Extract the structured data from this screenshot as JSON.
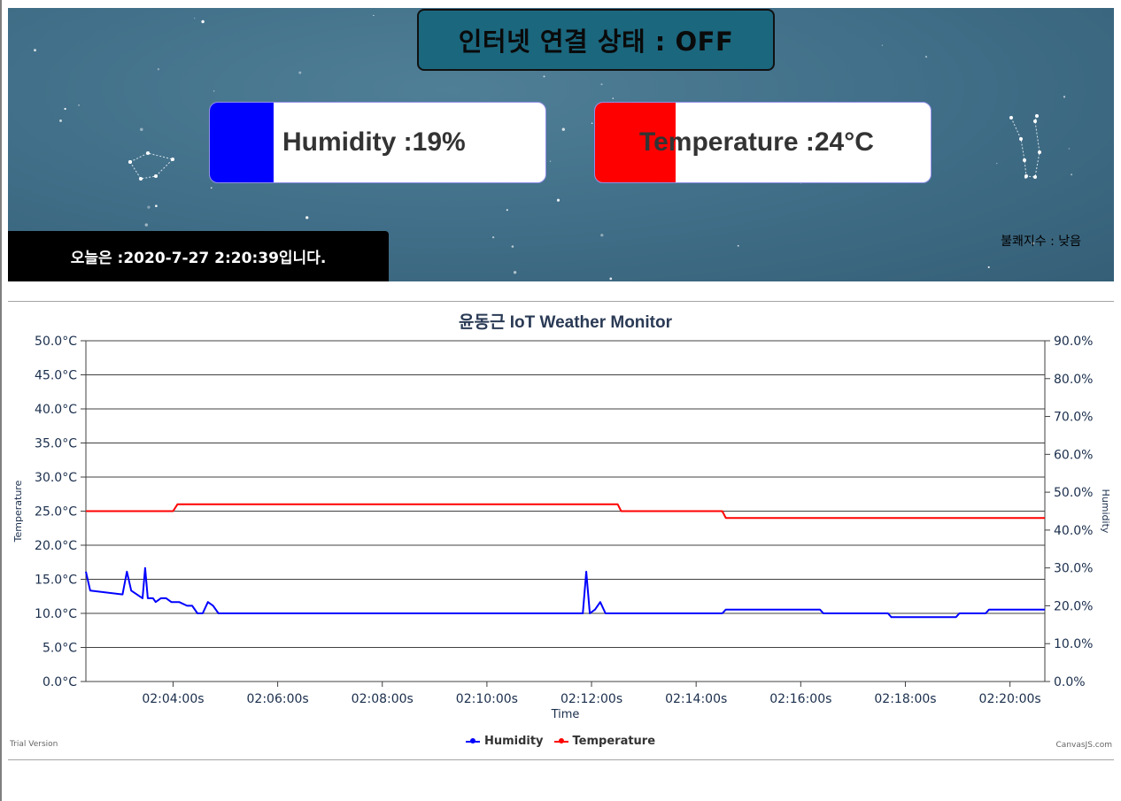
{
  "header": {
    "status_text": "인터넷 연결 상태 : OFF",
    "humidity_label": "Humidity :19%",
    "humidity_fill_fraction": 0.19,
    "temperature_label": "Temperature :24°C",
    "temperature_fill_fraction": 0.24,
    "date_text": "오늘은 :2020-7-27 2:20:39입니다.",
    "discomfort_text": "불쾌지수 : 낮음",
    "colors": {
      "humidity": "#0000ff",
      "temperature": "#ff0000",
      "status_box": "#1b677e"
    }
  },
  "footer": {
    "trial": "Trial Version",
    "credit": "CanvasJS.com"
  },
  "chart_data": {
    "type": "line",
    "title": "윤동근 IoT Weather Monitor",
    "xlabel": "Time",
    "ylabel": "Temperature",
    "y2label": "Humidity",
    "xlim": [
      "02:02:20",
      "02:20:40"
    ],
    "ylim": [
      0,
      50
    ],
    "y2lim": [
      0,
      90
    ],
    "grid": true,
    "legend_position": "bottom-center",
    "x_ticks": [
      "02:04:00s",
      "02:06:00s",
      "02:08:00s",
      "02:10:00s",
      "02:12:00s",
      "02:14:00s",
      "02:16:00s",
      "02:18:00s",
      "02:20:00s"
    ],
    "y_ticks": [
      "0.0°C",
      "5.0°C",
      "10.0°C",
      "15.0°C",
      "20.0°C",
      "25.0°C",
      "30.0°C",
      "35.0°C",
      "40.0°C",
      "45.0°C",
      "50.0°C"
    ],
    "y2_ticks": [
      "0.0%",
      "10.0%",
      "20.0%",
      "30.0%",
      "40.0%",
      "50.0%",
      "60.0%",
      "70.0%",
      "80.0%",
      "90.0%"
    ],
    "series": [
      {
        "name": "Humidity",
        "color": "#0000ff",
        "axis": "y2",
        "x": [
          "02:02:20",
          "02:02:25",
          "02:03:02",
          "02:03:07",
          "02:03:12",
          "02:03:25",
          "02:03:28",
          "02:03:31",
          "02:03:37",
          "02:03:40",
          "02:03:46",
          "02:03:52",
          "02:03:58",
          "02:04:07",
          "02:04:16",
          "02:04:22",
          "02:04:28",
          "02:04:34",
          "02:04:40",
          "02:04:46",
          "02:04:52",
          "02:11:50",
          "02:11:54",
          "02:11:58",
          "02:12:04",
          "02:12:10",
          "02:12:16",
          "02:14:30",
          "02:14:34",
          "02:16:22",
          "02:16:26",
          "02:17:40",
          "02:17:44",
          "02:18:58",
          "02:19:02",
          "02:19:32",
          "02:19:36",
          "02:20:40"
        ],
        "values": [
          29,
          24,
          23,
          29,
          24,
          22,
          30,
          22,
          22,
          21,
          22,
          22,
          21,
          21,
          20,
          20,
          18,
          18,
          21,
          20,
          18,
          18,
          29,
          18,
          19,
          21,
          18,
          18,
          19,
          19,
          18,
          18,
          17,
          17,
          18,
          18,
          19,
          19
        ]
      },
      {
        "name": "Temperature",
        "color": "#ff0000",
        "axis": "y",
        "x": [
          "02:02:20",
          "02:04:00",
          "02:04:05",
          "02:12:30",
          "02:12:34",
          "02:14:30",
          "02:14:34",
          "02:20:40"
        ],
        "values": [
          25,
          25,
          26,
          26,
          25,
          25,
          24,
          24
        ]
      }
    ]
  }
}
